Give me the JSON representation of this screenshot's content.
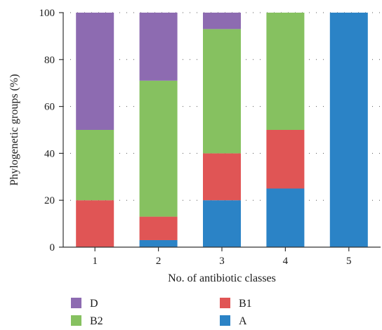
{
  "chart_data": {
    "type": "bar",
    "stacked": true,
    "categories": [
      "1",
      "2",
      "3",
      "4",
      "5"
    ],
    "xlabel": "No. of antibiotic classes",
    "ylabel": "Phylogenetic groups (%)",
    "ylim": [
      0,
      100
    ],
    "yticks": [
      0,
      20,
      40,
      60,
      80,
      100
    ],
    "grid": "dotted horizontal",
    "legend_position": "bottom",
    "series": [
      {
        "name": "A",
        "color": "#2b83c6",
        "values": [
          0,
          3,
          20,
          25,
          100
        ]
      },
      {
        "name": "B1",
        "color": "#e05555",
        "values": [
          20,
          10,
          20,
          25,
          0
        ]
      },
      {
        "name": "B2",
        "color": "#86c160",
        "values": [
          30,
          58,
          53,
          50,
          0
        ]
      },
      {
        "name": "D",
        "color": "#8d6bb1",
        "values": [
          50,
          29,
          7,
          0,
          0
        ]
      }
    ],
    "legend_order": [
      "D",
      "B1",
      "B2",
      "A"
    ]
  }
}
